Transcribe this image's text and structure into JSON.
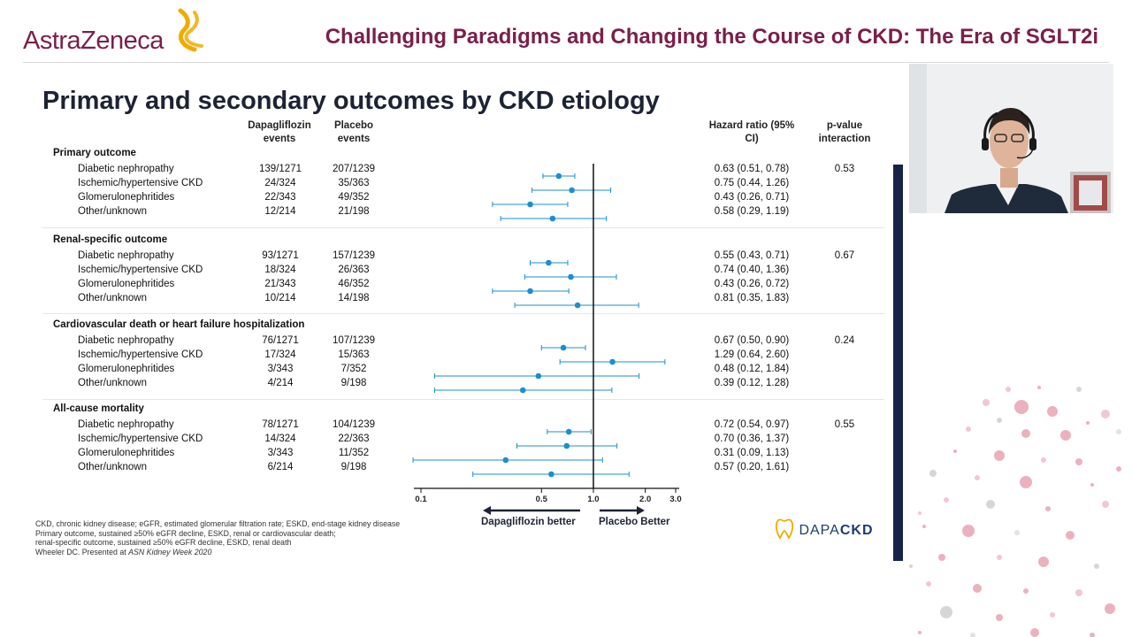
{
  "header": {
    "brand": "AstraZeneca",
    "title": "Challenging Paradigms and Changing the Course of CKD: The Era of SGLT2i"
  },
  "slide": {
    "title": "Primary and secondary outcomes by CKD etiology",
    "columns": {
      "dapa": "Dapagliflozin events",
      "placebo": "Placebo events",
      "hr": "Hazard ratio (95% CI)",
      "pval": "p-value interaction"
    },
    "footnote": {
      "line1": "CKD, chronic kidney disease; eGFR, estimated glomerular filtration rate; ESKD, end-stage kidney disease",
      "line2": "Primary outcome, sustained ≥50% eGFR decline, ESKD, renal or cardiovascular death;",
      "line3": "renal-specific outcome, sustained ≥50% eGFR decline, ESKD, renal death",
      "line4_prefix": "Wheeler DC. Presented at ",
      "line4_italic": "ASN Kidney Week 2020"
    },
    "direction": {
      "left": "Dapagliflozin better",
      "right": "Placebo Better"
    },
    "logo": {
      "a": "DAPA",
      "b": "CKD"
    }
  },
  "chart_data": {
    "type": "forest",
    "scale": "log",
    "xlim": [
      0.1,
      3.0
    ],
    "reference_line": 1.0,
    "ticks": [
      {
        "value": 0.1,
        "label": "0.1"
      },
      {
        "value": 0.5,
        "label": "0.5"
      },
      {
        "value": 1.0,
        "label": "1.0"
      },
      {
        "value": 2.0,
        "label": "2.0"
      },
      {
        "value": 3.0,
        "label": "3.0"
      }
    ],
    "color": "#1b8fd0",
    "sections": [
      {
        "name": "Primary outcome",
        "pvalue": "0.53",
        "rows": [
          {
            "label": "Diabetic nephropathy",
            "dapa": "139/1271",
            "placebo": "207/1239",
            "hr_text": "0.63 (0.51, 0.78)",
            "hr": 0.63,
            "lo": 0.51,
            "hi": 0.78
          },
          {
            "label": "Ischemic/hypertensive CKD",
            "dapa": "24/324",
            "placebo": "35/363",
            "hr_text": "0.75 (0.44, 1.26)",
            "hr": 0.75,
            "lo": 0.44,
            "hi": 1.26
          },
          {
            "label": "Glomerulonephritides",
            "dapa": "22/343",
            "placebo": "49/352",
            "hr_text": "0.43 (0.26, 0.71)",
            "hr": 0.43,
            "lo": 0.26,
            "hi": 0.71
          },
          {
            "label": "Other/unknown",
            "dapa": "12/214",
            "placebo": "21/198",
            "hr_text": "0.58 (0.29, 1.19)",
            "hr": 0.58,
            "lo": 0.29,
            "hi": 1.19
          }
        ]
      },
      {
        "name": "Renal-specific outcome",
        "pvalue": "0.67",
        "rows": [
          {
            "label": "Diabetic nephropathy",
            "dapa": "93/1271",
            "placebo": "157/1239",
            "hr_text": "0.55 (0.43, 0.71)",
            "hr": 0.55,
            "lo": 0.43,
            "hi": 0.71
          },
          {
            "label": "Ischemic/hypertensive CKD",
            "dapa": "18/324",
            "placebo": "26/363",
            "hr_text": "0.74 (0.40, 1.36)",
            "hr": 0.74,
            "lo": 0.4,
            "hi": 1.36
          },
          {
            "label": "Glomerulonephritides",
            "dapa": "21/343",
            "placebo": "46/352",
            "hr_text": "0.43 (0.26, 0.72)",
            "hr": 0.43,
            "lo": 0.26,
            "hi": 0.72
          },
          {
            "label": "Other/unknown",
            "dapa": "10/214",
            "placebo": "14/198",
            "hr_text": "0.81 (0.35, 1.83)",
            "hr": 0.81,
            "lo": 0.35,
            "hi": 1.83
          }
        ]
      },
      {
        "name": "Cardiovascular death or heart failure hospitalization",
        "pvalue": "0.24",
        "rows": [
          {
            "label": "Diabetic nephropathy",
            "dapa": "76/1271",
            "placebo": "107/1239",
            "hr_text": "0.67 (0.50, 0.90)",
            "hr": 0.67,
            "lo": 0.5,
            "hi": 0.9
          },
          {
            "label": "Ischemic/hypertensive CKD",
            "dapa": "17/324",
            "placebo": "15/363",
            "hr_text": "1.29 (0.64, 2.60)",
            "hr": 1.29,
            "lo": 0.64,
            "hi": 2.6
          },
          {
            "label": "Glomerulonephritides",
            "dapa": "3/343",
            "placebo": "7/352",
            "hr_text": "0.48 (0.12, 1.84)",
            "hr": 0.48,
            "lo": 0.12,
            "hi": 1.84
          },
          {
            "label": "Other/unknown",
            "dapa": "4/214",
            "placebo": "9/198",
            "hr_text": "0.39 (0.12, 1.28)",
            "hr": 0.39,
            "lo": 0.12,
            "hi": 1.28
          }
        ]
      },
      {
        "name": "All-cause mortality",
        "pvalue": "0.55",
        "rows": [
          {
            "label": "Diabetic nephropathy",
            "dapa": "78/1271",
            "placebo": "104/1239",
            "hr_text": "0.72 (0.54, 0.97)",
            "hr": 0.72,
            "lo": 0.54,
            "hi": 0.97
          },
          {
            "label": "Ischemic/hypertensive CKD",
            "dapa": "14/324",
            "placebo": "22/363",
            "hr_text": "0.70 (0.36, 1.37)",
            "hr": 0.7,
            "lo": 0.36,
            "hi": 1.37
          },
          {
            "label": "Glomerulonephritides",
            "dapa": "3/343",
            "placebo": "11/352",
            "hr_text": "0.31 (0.09, 1.13)",
            "hr": 0.31,
            "lo": 0.09,
            "hi": 1.13
          },
          {
            "label": "Other/unknown",
            "dapa": "6/214",
            "placebo": "9/198",
            "hr_text": "0.57 (0.20, 1.61)",
            "hr": 0.57,
            "lo": 0.2,
            "hi": 1.61
          }
        ]
      }
    ]
  }
}
